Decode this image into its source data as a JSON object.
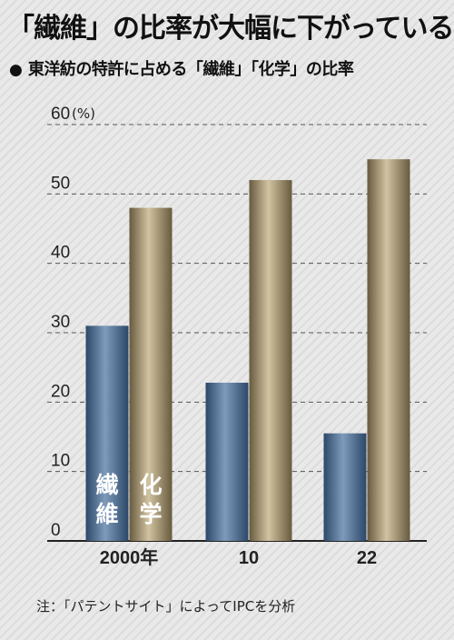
{
  "header": {
    "title": "「繊維」の比率が大幅に下がっている",
    "bullet": "●",
    "subtitle": "東洋紡の特許に占める「繊維」「化学」の比率"
  },
  "note": "注：「パテントサイト」によってIPCを分析",
  "colors": {
    "fiber": "#3c5a7e",
    "chemical": "#7e7052",
    "axis": "#222222",
    "grid": "#555555"
  },
  "chart_data": {
    "type": "bar",
    "categories": [
      "2000年",
      "10",
      "22"
    ],
    "series": [
      {
        "name": "繊維",
        "values": [
          31,
          22.8,
          15.5
        ]
      },
      {
        "name": "化学",
        "values": [
          48,
          52,
          55
        ]
      }
    ],
    "ylim": [
      0,
      60
    ],
    "yticks": [
      "0",
      "10",
      "20",
      "30",
      "40",
      "50",
      "60"
    ],
    "yunit": "(%)",
    "grid": true,
    "grid_style": "dashed"
  }
}
